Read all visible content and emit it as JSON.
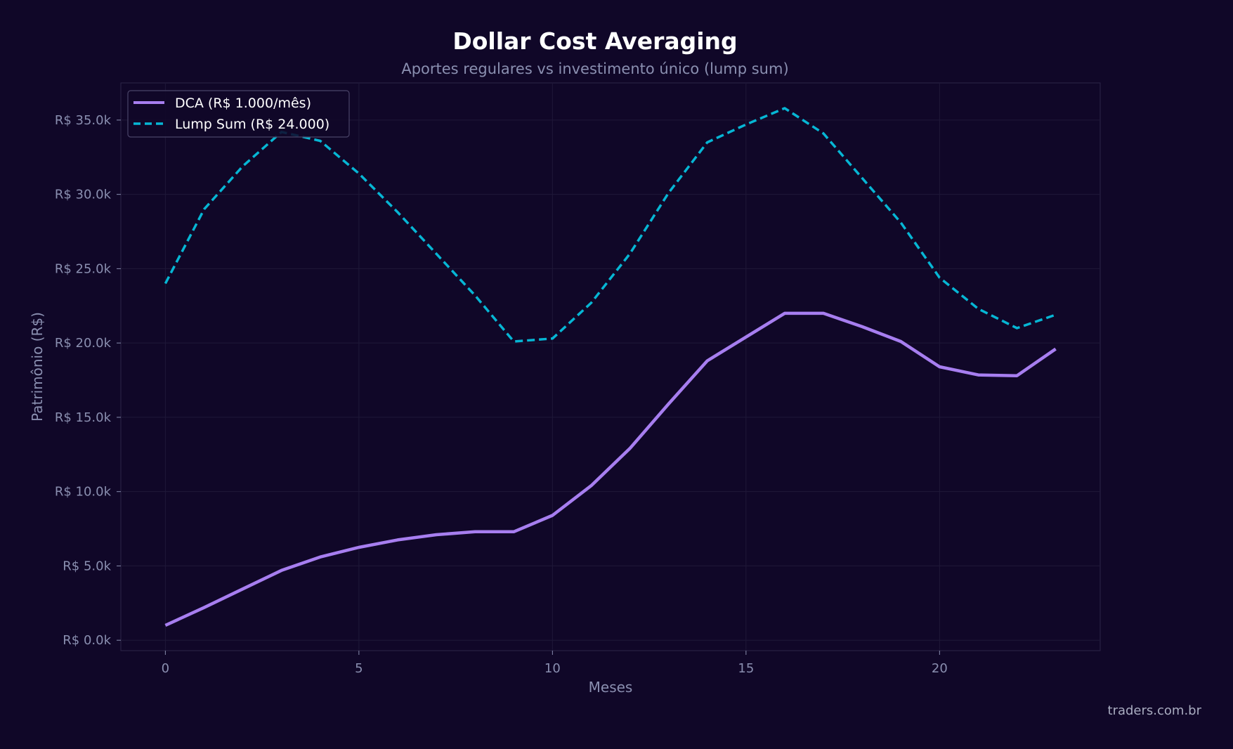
{
  "chart_data": {
    "type": "line",
    "title": "Dollar Cost Averaging",
    "subtitle": "Aportes regulares vs investimento único (lump sum)",
    "xlabel": "Meses",
    "ylabel": "Patrimônio (R$)",
    "xlim": [
      -1.15,
      24.15
    ],
    "ylim": [
      -700,
      37500
    ],
    "x_ticks": [
      0,
      5,
      10,
      15,
      20
    ],
    "y_ticks": [
      0,
      5000,
      10000,
      15000,
      20000,
      25000,
      30000,
      35000
    ],
    "y_tick_labels": [
      "R$ 0.0k",
      "R$ 5.0k",
      "R$ 10.0k",
      "R$ 15.0k",
      "R$ 20.0k",
      "R$ 25.0k",
      "R$ 30.0k",
      "R$ 35.0k"
    ],
    "grid": true,
    "legend_position": "top-left",
    "x": [
      0,
      1,
      2,
      3,
      4,
      5,
      6,
      7,
      8,
      9,
      10,
      11,
      12,
      13,
      14,
      15,
      16,
      17,
      18,
      19,
      20,
      21,
      22,
      23
    ],
    "series": [
      {
        "name": "DCA (R$ 1.000/mês)",
        "color": "#a77ef0",
        "style": "solid",
        "values": [
          1000,
          2200,
          3450,
          4700,
          5600,
          6250,
          6750,
          7100,
          7300,
          7300,
          8400,
          10400,
          12900,
          15900,
          18800,
          20400,
          22000,
          22000,
          21100,
          20100,
          18400,
          17850,
          17800,
          19600
        ]
      },
      {
        "name": "Lump Sum (R$ 24.000)",
        "color": "#06b6d4",
        "style": "dashed",
        "values": [
          24000,
          29000,
          31900,
          34200,
          33600,
          31400,
          28800,
          26000,
          23200,
          20100,
          20300,
          22700,
          26000,
          30100,
          33500,
          34700,
          35800,
          34100,
          31100,
          28100,
          24400,
          22300,
          21000,
          21900
        ]
      }
    ]
  },
  "watermark": "traders.com.br",
  "colors": {
    "background": "#100728",
    "axes_frame": "#2c2448",
    "grid": "#1f1838",
    "text_muted": "#8a8fb0"
  }
}
